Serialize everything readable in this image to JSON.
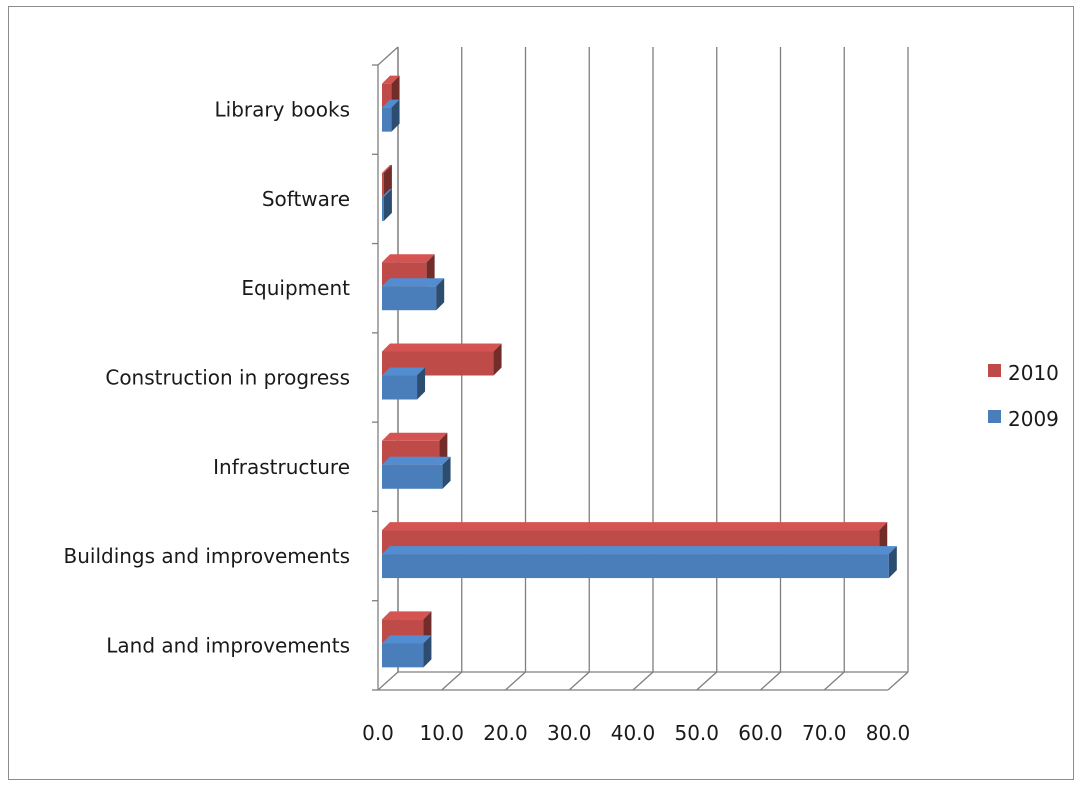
{
  "chart_data": {
    "type": "bar",
    "orientation": "horizontal",
    "style": "3d-clustered",
    "categories": [
      "Land and improvements",
      "Buildings and improvements",
      "Infrastructure",
      "Construction in progress",
      "Equipment",
      "Software",
      "Library books"
    ],
    "series": [
      {
        "name": "2009",
        "color": "#4a7ebb",
        "values": [
          6.5,
          79.5,
          9.5,
          5.5,
          8.5,
          0.3,
          1.5
        ]
      },
      {
        "name": "2010",
        "color": "#be4b48",
        "values": [
          6.5,
          78.0,
          9.0,
          17.5,
          7.0,
          0.3,
          1.5
        ]
      }
    ],
    "xlim": [
      0,
      80
    ],
    "xticks": [
      "0.0",
      "10.0",
      "20.0",
      "30.0",
      "40.0",
      "50.0",
      "60.0",
      "70.0",
      "80.0"
    ],
    "grid": true,
    "legend": {
      "position": "right",
      "order": [
        "2010",
        "2009"
      ]
    },
    "title": "",
    "xlabel": "",
    "ylabel": ""
  }
}
